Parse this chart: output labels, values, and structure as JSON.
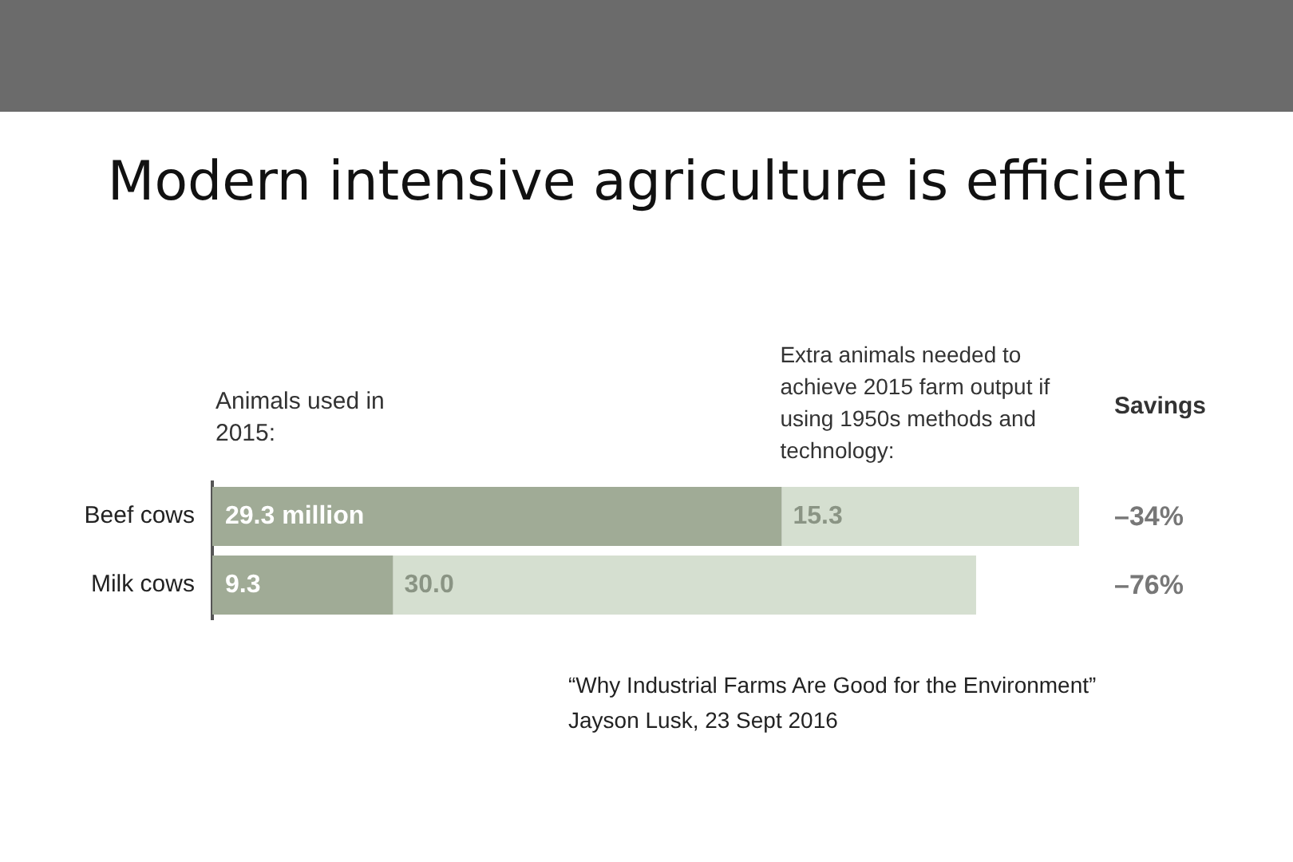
{
  "chart_data": {
    "type": "bar",
    "orientation": "horizontal",
    "stacked": true,
    "title": "Modern intensive agriculture is efficient",
    "categories": [
      "Beef cows",
      "Milk cows"
    ],
    "series": [
      {
        "name": "Animals used in 2015:",
        "color": "#a0ab96",
        "values": [
          29.3,
          9.3
        ],
        "value_labels": [
          "29.3 million",
          "9.3"
        ]
      },
      {
        "name": "Extra animals needed to achieve 2015 farm output if using 1950s methods and technology:",
        "color": "#d5dfd0",
        "values": [
          15.3,
          30.0
        ],
        "value_labels": [
          "15.3",
          "30.0"
        ]
      }
    ],
    "xlim": [
      0,
      44.6
    ],
    "tick_labels": "y",
    "grid": false,
    "legend": false,
    "annotations": [
      "Savings",
      "–34%",
      "–76%",
      "“Why Industrial Farms Are Good for the Environment”",
      "Jayson Lusk, 23 Sept 2016"
    ]
  }
}
